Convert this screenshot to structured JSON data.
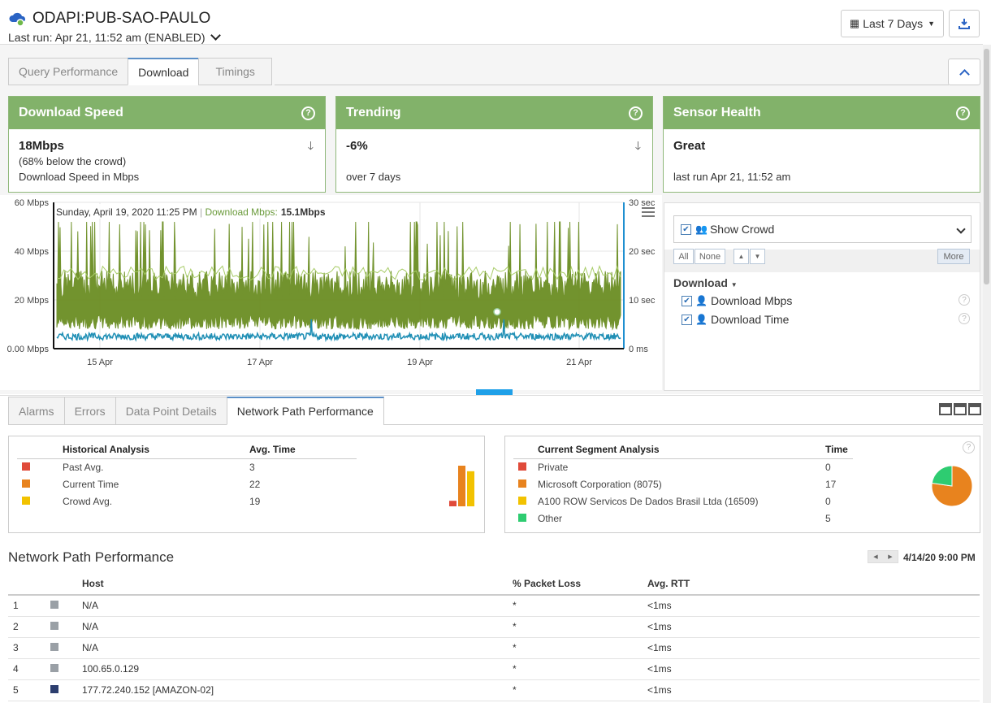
{
  "header": {
    "title": "ODAPI:PUB-SAO-PAULO",
    "last_run": "Last run: Apr 21, 11:52 am (ENABLED)",
    "range_label": "Last 7 Days"
  },
  "tabs": [
    {
      "label": "Query Performance"
    },
    {
      "label": "Download"
    },
    {
      "label": "Timings"
    }
  ],
  "cards": {
    "speed": {
      "title": "Download Speed",
      "value": "18Mbps",
      "line1": "(68% below the crowd)",
      "line2": "Download Speed in Mbps"
    },
    "trending": {
      "title": "Trending",
      "value": "-6%",
      "line2": "over 7 days"
    },
    "health": {
      "title": "Sensor Health",
      "value": "Great",
      "line2": "last run Apr 21, 11:52 am"
    }
  },
  "chart_data": {
    "type": "line",
    "tooltip_date": "Sunday, April 19, 2020 11:25 PM",
    "tooltip_series": "Download Mbps:",
    "tooltip_value": "15.1Mbps",
    "y_left_ticks": [
      "60 Mbps",
      "40 Mbps",
      "20 Mbps",
      "0.00 Mbps"
    ],
    "y_left_range": [
      0,
      60
    ],
    "y_right_ticks": [
      "30 sec",
      "20 sec",
      "10 sec",
      "0 ms"
    ],
    "y_right_range": [
      0,
      30
    ],
    "x_ticks": [
      "15 Apr",
      "17 Apr",
      "19 Apr",
      "21 Apr"
    ],
    "series": [
      {
        "name": "Download Mbps",
        "color": "#6b8e23",
        "approx_mean": 18,
        "approx_range": [
          8,
          52
        ]
      },
      {
        "name": "Crowd",
        "color": "#a8cc68",
        "approx_mean": 31
      },
      {
        "name": "Download Time",
        "color": "#1f8fb5",
        "approx_mean": 2.5
      }
    ]
  },
  "legend_panel": {
    "show_crowd": "Show Crowd",
    "all": "All",
    "none": "None",
    "more": "More",
    "group": "Download",
    "items": [
      {
        "label": "Download Mbps",
        "color": "#5a8a2a"
      },
      {
        "label": "Download Time",
        "color": "#1a6fa0"
      }
    ]
  },
  "bottom_tabs": [
    {
      "label": "Alarms"
    },
    {
      "label": "Errors"
    },
    {
      "label": "Data Point Details"
    },
    {
      "label": "Network Path Performance"
    }
  ],
  "historical": {
    "h1": "Historical Analysis",
    "h2": "Avg. Time",
    "rows": [
      {
        "label": "Past Avg.",
        "value": "3",
        "color": "#e04a3a"
      },
      {
        "label": "Current Time",
        "value": "22",
        "color": "#e8831e"
      },
      {
        "label": "Crowd Avg.",
        "value": "19",
        "color": "#f2c200"
      }
    ]
  },
  "segment": {
    "h1": "Current Segment Analysis",
    "h2": "Time",
    "rows": [
      {
        "label": "Private",
        "value": "0",
        "color": "#e04a3a"
      },
      {
        "label": "Microsoft Corporation (8075)",
        "value": "17",
        "color": "#e8831e"
      },
      {
        "label": "A100 ROW Servicos De Dados Brasil Ltda (16509)",
        "value": "0",
        "color": "#f2c200"
      },
      {
        "label": "Other",
        "value": "5",
        "color": "#2ecc71"
      }
    ]
  },
  "npp": {
    "title": "Network Path Performance",
    "timestamp": "4/14/20 9:00 PM",
    "columns": [
      "Host",
      "% Packet Loss",
      "Avg. RTT"
    ],
    "rows": [
      {
        "n": "1",
        "host": "N/A",
        "loss": "*",
        "rtt": "<1ms",
        "color": "#9aa0a6"
      },
      {
        "n": "2",
        "host": "N/A",
        "loss": "*",
        "rtt": "<1ms",
        "color": "#9aa0a6"
      },
      {
        "n": "3",
        "host": "N/A",
        "loss": "*",
        "rtt": "<1ms",
        "color": "#9aa0a6"
      },
      {
        "n": "4",
        "host": "100.65.0.129",
        "loss": "*",
        "rtt": "<1ms",
        "color": "#9aa0a6"
      },
      {
        "n": "5",
        "host": "177.72.240.152 [AMAZON-02]",
        "loss": "*",
        "rtt": "<1ms",
        "color": "#2c3e6e"
      }
    ]
  }
}
